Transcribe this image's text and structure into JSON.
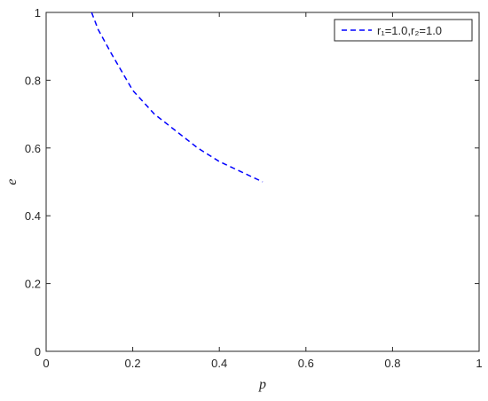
{
  "chart_data": {
    "type": "line",
    "x_label": "p",
    "y_label": "e",
    "series": [
      {
        "name": "r₁=1.0,r₂=1.0",
        "color": "#0000ff",
        "x": [
          0.105,
          0.12,
          0.15,
          0.2,
          0.25,
          0.3,
          0.35,
          0.4,
          0.45,
          0.5
        ],
        "values": [
          1,
          0.95,
          0.88,
          0.77,
          0.7,
          0.65,
          0.6,
          0.56,
          0.53,
          0.5
        ]
      }
    ],
    "xlim": [
      0,
      1
    ],
    "ylim": [
      0,
      1
    ],
    "xticks": [
      0,
      0.2,
      0.4,
      0.6,
      0.8,
      1
    ],
    "yticks": [
      0,
      0.2,
      0.4,
      0.6,
      0.8,
      1
    ],
    "legend": "top-right",
    "line_style": "dashed"
  }
}
